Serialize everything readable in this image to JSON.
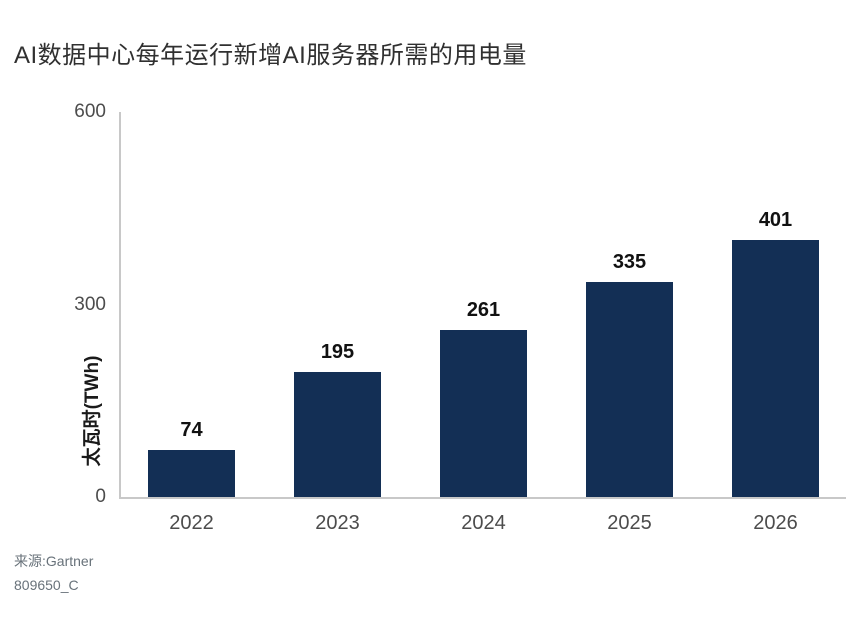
{
  "chart_data": {
    "type": "bar",
    "title": "AI数据中心每年运行新增AI服务器所需的用电量",
    "categories": [
      "2022",
      "2023",
      "2024",
      "2025",
      "2026"
    ],
    "values": [
      74,
      195,
      261,
      335,
      401
    ],
    "value_labels": [
      "74",
      "195",
      "261",
      "335",
      "401"
    ],
    "xlabel": "",
    "ylabel": "太瓦时(TWh)",
    "ylim": [
      0,
      600
    ],
    "yticks": [
      0,
      300,
      600
    ],
    "ytick_labels": [
      "0",
      "300",
      "600"
    ],
    "grid": false,
    "legend": "none",
    "bar_color": "#132f55"
  },
  "footer": {
    "source": "来源:Gartner",
    "doc_id": "809650_C"
  },
  "colors": {
    "bar": "#132f55",
    "axis_line": "#c8c8c8",
    "tick_text": "#4c4c4c",
    "title_text": "#303030",
    "value_text": "#111111",
    "footer_text": "#68727a"
  }
}
